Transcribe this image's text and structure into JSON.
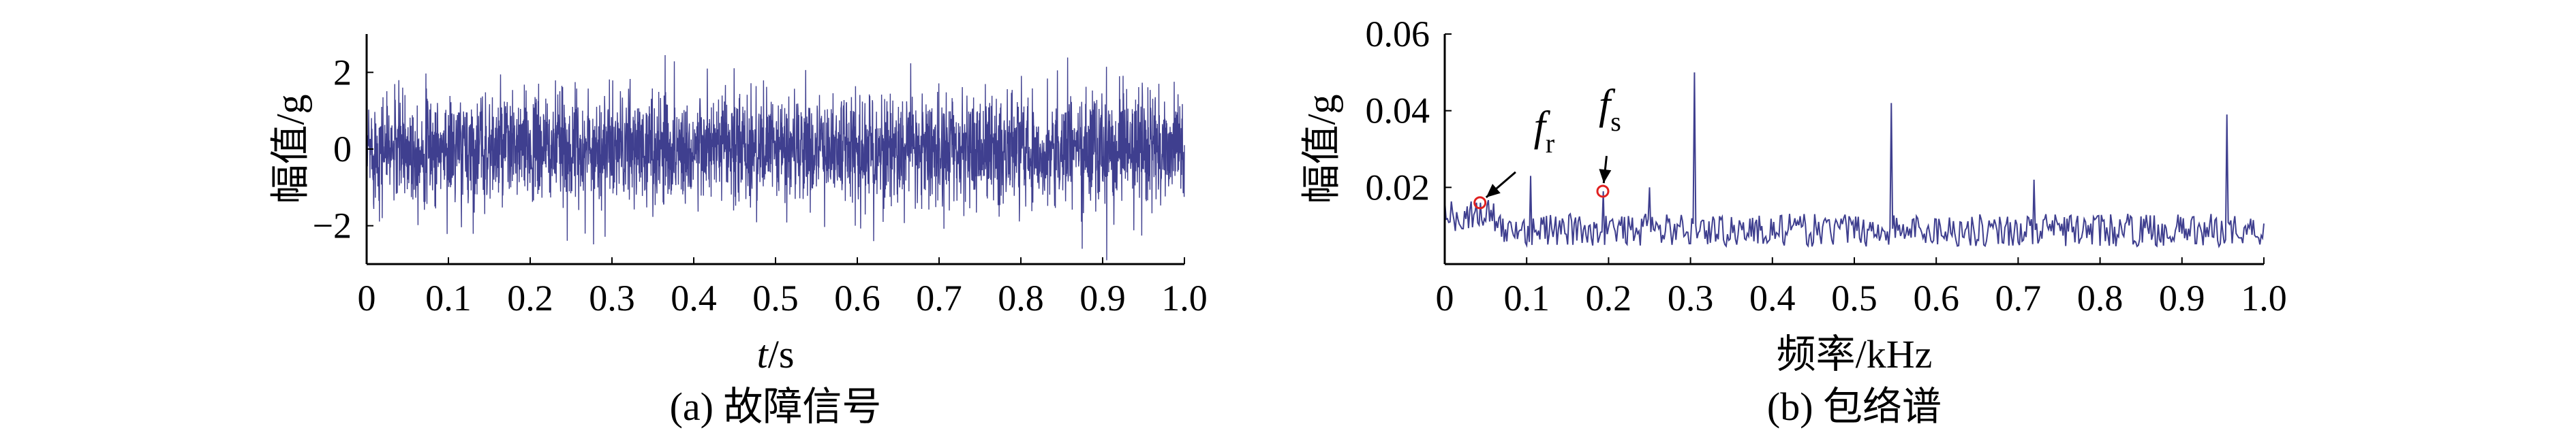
{
  "chart_data": [
    {
      "type": "line",
      "panel_caption": "(a) 故障信号",
      "xlabel_symbol": "t",
      "xlabel_unit": "/s",
      "ylabel": "幅值/g",
      "xlim": [
        0,
        1.0
      ],
      "ylim": [
        -3,
        3
      ],
      "xticks": [
        0,
        0.1,
        0.2,
        0.3,
        0.4,
        0.5,
        0.6,
        0.7,
        0.8,
        0.9,
        1.0
      ],
      "xtick_labels": [
        "0",
        "0.1",
        "0.2",
        "0.3",
        "0.4",
        "0.5",
        "0.6",
        "0.7",
        "0.8",
        "0.9",
        "1.0"
      ],
      "yticks": [
        -2,
        0,
        2
      ],
      "ytick_labels": [
        "−2",
        "0",
        "2"
      ],
      "series_color": "#3f3f8f",
      "signal": {
        "typical_amplitude": 1.3,
        "peak_amplitude": 2.5,
        "peaks": [
          {
            "x": 0.365,
            "y": 2.45
          },
          {
            "x": 0.905,
            "y": -2.9
          },
          {
            "x": 0.875,
            "y": -2.6
          },
          {
            "x": 0.62,
            "y": -2.4
          }
        ]
      }
    },
    {
      "type": "line",
      "panel_caption": "(b) 包络谱",
      "xlabel": "频率/kHz",
      "ylabel": "幅值/g",
      "xlim": [
        0,
        1.0
      ],
      "ylim": [
        0,
        0.06
      ],
      "xticks": [
        0,
        0.1,
        0.2,
        0.3,
        0.4,
        0.5,
        0.6,
        0.7,
        0.8,
        0.9,
        1.0
      ],
      "xtick_labels": [
        "0",
        "0.1",
        "0.2",
        "0.3",
        "0.4",
        "0.5",
        "0.6",
        "0.7",
        "0.8",
        "0.9",
        "1.0"
      ],
      "yticks": [
        0.02,
        0.04,
        0.06
      ],
      "ytick_labels": [
        "0.02",
        "0.04",
        "0.06"
      ],
      "series_color": "#3f3f8f",
      "marker_color": "#e02020",
      "baseline_level": 0.008,
      "peaks": [
        {
          "x": 0.305,
          "y": 0.05
        },
        {
          "x": 0.545,
          "y": 0.042
        },
        {
          "x": 0.955,
          "y": 0.039
        },
        {
          "x": 0.105,
          "y": 0.023
        },
        {
          "x": 0.72,
          "y": 0.022
        },
        {
          "x": 0.25,
          "y": 0.02
        }
      ],
      "annotations": [
        {
          "base": "f",
          "sub": "r",
          "x": 0.043,
          "y": 0.016
        },
        {
          "base": "f",
          "sub": "s",
          "x": 0.193,
          "y": 0.019
        }
      ]
    }
  ]
}
